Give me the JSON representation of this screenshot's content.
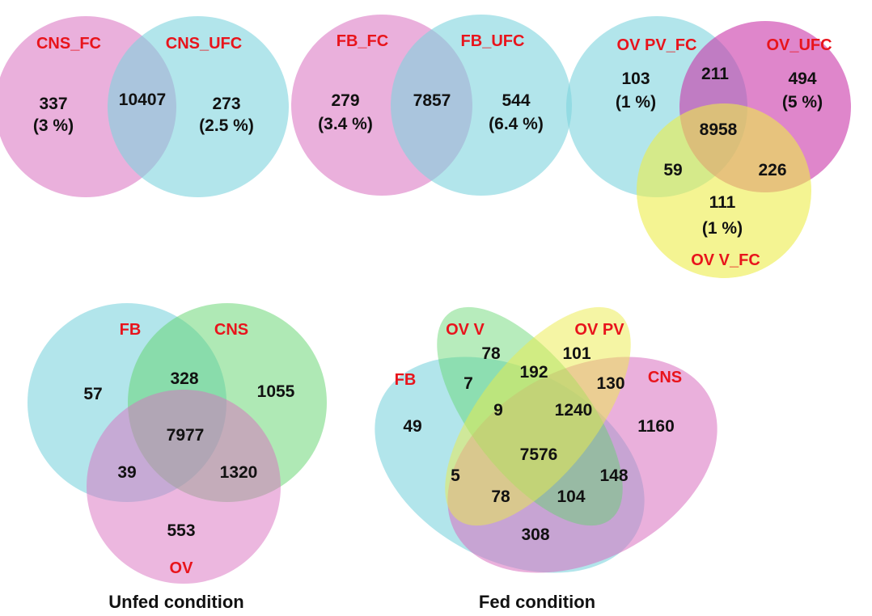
{
  "colors": {
    "pink": "#d96fc0",
    "cyan": "#7fd3de",
    "magenta": "#c935a9",
    "yellow": "#ecec4a",
    "green": "#5fd46b",
    "label_red": "#e8141c"
  },
  "panel_a": {
    "cns": {
      "left_label": "CNS_FC",
      "right_label": "CNS_UFC",
      "left_value": "337",
      "left_pct": "(3 %)",
      "shared": "10407",
      "right_value": "273",
      "right_pct": "(2.5 %)"
    },
    "fb": {
      "left_label": "FB_FC",
      "right_label": "FB_UFC",
      "left_value": "279",
      "left_pct": "(3.4 %)",
      "shared": "7857",
      "right_value": "544",
      "right_pct": "(6.4 %)"
    },
    "ov": {
      "label_pv": "OV PV_FC",
      "label_ufc": "OV_UFC",
      "label_v": "OV V_FC",
      "pv_only": "103",
      "pv_only_pct": "(1 %)",
      "pv_ufc": "211",
      "ufc_only": "494",
      "ufc_only_pct": "(5 %)",
      "all": "8958",
      "pv_v": "59",
      "ufc_v": "226",
      "v_only": "111",
      "v_only_pct": "(1 %)"
    }
  },
  "panel_b": {
    "unfed": {
      "caption": "Unfed condition",
      "label_fb": "FB",
      "label_cns": "CNS",
      "label_ov": "OV",
      "fb_only": "57",
      "fb_cns": "328",
      "cns_only": "1055",
      "all": "7977",
      "fb_ov": "39",
      "cns_ov": "1320",
      "ov_only": "553"
    },
    "fed": {
      "caption": "Fed condition",
      "label_ovv": "OV V",
      "label_ovpv": "OV PV",
      "label_fb": "FB",
      "label_cns": "CNS",
      "v_only": "78",
      "pv_only": "101",
      "v_pv": "192",
      "fb_v": "7",
      "pv_cns": "130",
      "fb_v_pv": "9",
      "v_pv_cns": "1240",
      "fb_only": "49",
      "cns_only": "1160",
      "all": "7576",
      "fb_pv": "5",
      "v_cns": "148",
      "fb_pv_cns": "78",
      "fb_v_cns": "104",
      "fb_cns": "308"
    }
  }
}
